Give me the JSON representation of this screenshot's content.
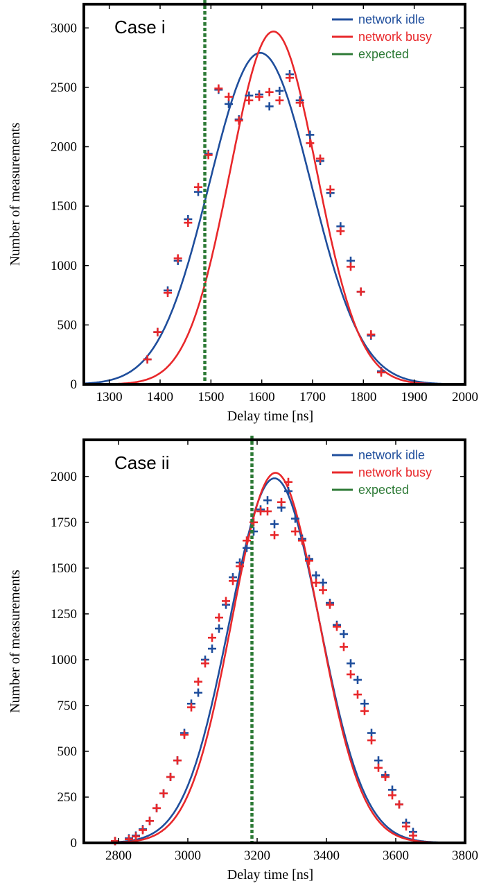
{
  "chart_data": [
    {
      "type": "scatter",
      "annotation": "Case i",
      "xlabel": "Delay time [ns]",
      "ylabel": "Number of measurements",
      "xlim": [
        1250,
        2000
      ],
      "ylim": [
        0,
        3200
      ],
      "xticks": [
        1300,
        1400,
        1500,
        1600,
        1700,
        1800,
        1900,
        2000
      ],
      "yticks": [
        0,
        500,
        1000,
        1500,
        2000,
        2500,
        3000
      ],
      "grid": false,
      "legend_position": "top-right",
      "expected_x": 1488,
      "series": [
        {
          "name": "network idle",
          "color": "#1f4e9c",
          "fit": {
            "mean": 1597,
            "sigma": 100,
            "amplitude": 2790
          },
          "x": [
            1375,
            1395,
            1415,
            1435,
            1455,
            1475,
            1495,
            1515,
            1535,
            1555,
            1575,
            1595,
            1615,
            1635,
            1655,
            1675,
            1695,
            1715,
            1735,
            1755,
            1775,
            1795,
            1815,
            1835
          ],
          "y": [
            210,
            440,
            790,
            1040,
            1390,
            1620,
            1940,
            2480,
            2360,
            2230,
            2430,
            2440,
            2340,
            2470,
            2610,
            2390,
            2100,
            1880,
            1610,
            1330,
            1040,
            780,
            410,
            110
          ]
        },
        {
          "name": "network busy",
          "color": "#e8282b",
          "fit": {
            "mean": 1623,
            "sigma": 85,
            "amplitude": 2970
          },
          "x": [
            1375,
            1395,
            1415,
            1435,
            1455,
            1475,
            1495,
            1515,
            1535,
            1555,
            1575,
            1595,
            1615,
            1635,
            1655,
            1675,
            1695,
            1715,
            1735,
            1755,
            1775,
            1795,
            1815,
            1835
          ],
          "y": [
            210,
            440,
            770,
            1060,
            1360,
            1660,
            1930,
            2490,
            2420,
            2220,
            2390,
            2420,
            2460,
            2390,
            2580,
            2370,
            2030,
            1900,
            1640,
            1290,
            990,
            780,
            420,
            100
          ]
        },
        {
          "name": "expected",
          "color": "#2d7a36"
        }
      ]
    },
    {
      "type": "scatter",
      "annotation": "Case ii",
      "xlabel": "Delay time [ns]",
      "ylabel": "Number of measurements",
      "xlim": [
        2700,
        3800
      ],
      "ylim": [
        0,
        2200
      ],
      "xticks": [
        2800,
        3000,
        3200,
        3400,
        3600,
        3800
      ],
      "yticks": [
        0,
        250,
        500,
        750,
        1000,
        1250,
        1500,
        1750,
        2000
      ],
      "grid": false,
      "legend_position": "top-right",
      "expected_x": 3185,
      "series": [
        {
          "name": "network idle",
          "color": "#1f4e9c",
          "fit": {
            "mean": 3250,
            "sigma": 130,
            "amplitude": 1990
          },
          "x": [
            2790,
            2830,
            2850,
            2870,
            2890,
            2910,
            2930,
            2950,
            2970,
            2990,
            3010,
            3030,
            3050,
            3070,
            3090,
            3110,
            3130,
            3150,
            3170,
            3190,
            3210,
            3230,
            3250,
            3270,
            3290,
            3310,
            3330,
            3350,
            3370,
            3390,
            3410,
            3430,
            3450,
            3470,
            3490,
            3510,
            3530,
            3550,
            3570,
            3590,
            3610,
            3630,
            3650
          ],
          "y": [
            10,
            25,
            40,
            75,
            120,
            190,
            270,
            360,
            450,
            600,
            760,
            820,
            1000,
            1060,
            1170,
            1300,
            1450,
            1530,
            1610,
            1700,
            1820,
            1870,
            1740,
            1830,
            1920,
            1770,
            1660,
            1550,
            1460,
            1420,
            1310,
            1190,
            1140,
            980,
            890,
            760,
            600,
            450,
            370,
            290,
            210,
            110,
            60
          ]
        },
        {
          "name": "network busy",
          "color": "#e8282b",
          "fit": {
            "mean": 3253,
            "sigma": 125,
            "amplitude": 2020
          },
          "x": [
            2790,
            2830,
            2850,
            2870,
            2890,
            2910,
            2930,
            2950,
            2970,
            2990,
            3010,
            3030,
            3050,
            3070,
            3090,
            3110,
            3130,
            3150,
            3170,
            3190,
            3210,
            3230,
            3250,
            3270,
            3290,
            3310,
            3330,
            3350,
            3370,
            3390,
            3410,
            3430,
            3450,
            3470,
            3490,
            3510,
            3530,
            3550,
            3570,
            3590,
            3610,
            3630,
            3650
          ],
          "y": [
            10,
            20,
            35,
            70,
            120,
            190,
            270,
            360,
            450,
            590,
            740,
            880,
            980,
            1120,
            1230,
            1320,
            1430,
            1510,
            1650,
            1750,
            1810,
            1810,
            1680,
            1860,
            1970,
            1700,
            1650,
            1540,
            1420,
            1380,
            1300,
            1180,
            1070,
            920,
            810,
            720,
            560,
            410,
            360,
            260,
            210,
            90,
            40
          ]
        },
        {
          "name": "expected",
          "color": "#2d7a36"
        }
      ]
    }
  ]
}
